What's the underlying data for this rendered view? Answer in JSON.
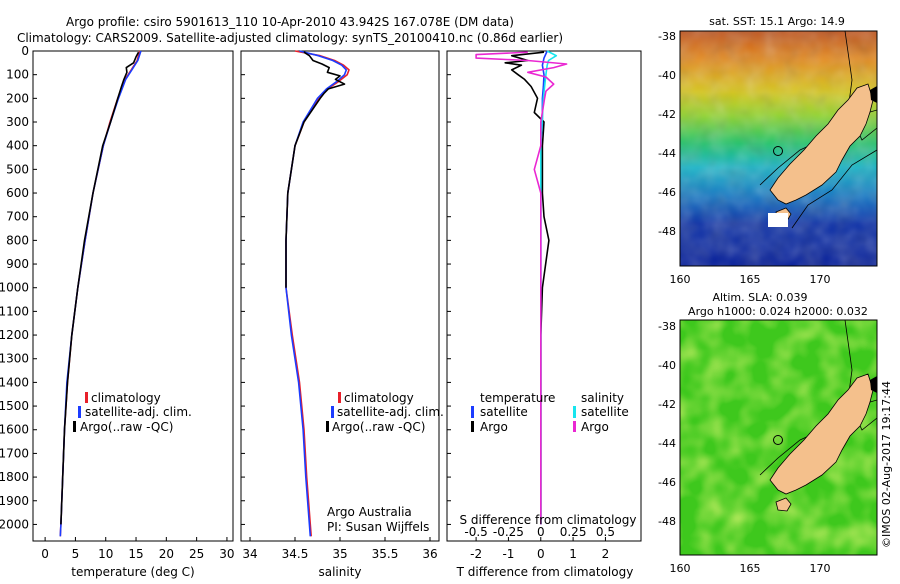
{
  "header": {
    "line1": "Argo profile: csiro 5901613_110 10-Apr-2010 43.942S 167.078E (DM data)",
    "line2": "Climatology: CARS2009. Satellite-adjusted climatology: synTS_20100410.nc (0.86d earlier)"
  },
  "colors": {
    "climatology": "#e8202a",
    "satellite": "#1c3cff",
    "argo": "#000000",
    "sat_salinity": "#17e5ee",
    "argo_salinity": "#ea27d2",
    "land": "#f4c08c"
  },
  "chart_data": [
    {
      "type": "line",
      "name": "temperature-profile",
      "xlabel": "temperature (deg C)",
      "ylabel": "",
      "xlim": [
        -2,
        31
      ],
      "ylim": [
        2070,
        0
      ],
      "x_ticks": [
        "0",
        "5",
        "10",
        "15",
        "20",
        "25",
        "30"
      ],
      "y_ticks": [
        "0",
        "100",
        "200",
        "300",
        "400",
        "500",
        "600",
        "700",
        "800",
        "900",
        "1000",
        "1100",
        "1200",
        "1300",
        "1400",
        "1500",
        "1600",
        "1700",
        "1800",
        "1900",
        "2000"
      ],
      "legend": [
        "climatology",
        "satellite-adj. clim.",
        "Argo(..raw -QC)"
      ],
      "legend_position": "lower-right",
      "series": [
        {
          "name": "climatology",
          "color": "#e8202a",
          "depth": [
            0,
            40,
            80,
            120,
            200,
            300,
            400,
            600,
            800,
            1000,
            1200,
            1400,
            1600,
            1800,
            2000,
            2050
          ],
          "values": [
            15.6,
            15.2,
            14.2,
            13.2,
            12.0,
            10.7,
            9.6,
            7.9,
            6.6,
            5.4,
            4.4,
            3.7,
            3.2,
            2.9,
            2.6,
            2.5
          ]
        },
        {
          "name": "satellite-adj. clim.",
          "color": "#1c3cff",
          "depth": [
            0,
            40,
            80,
            120,
            200,
            300,
            400,
            600,
            800,
            1000,
            1200,
            1400,
            1600,
            1800,
            2000,
            2050
          ],
          "values": [
            15.8,
            15.3,
            14.3,
            13.3,
            12.1,
            10.8,
            9.6,
            7.9,
            6.6,
            5.4,
            4.4,
            3.6,
            3.2,
            2.9,
            2.6,
            2.5
          ]
        },
        {
          "name": "Argo(..raw -QC)",
          "color": "#000000",
          "depth": [
            5,
            25,
            50,
            70,
            90,
            120,
            150,
            200,
            300,
            400,
            600,
            800,
            1000,
            1200,
            1400,
            1600,
            1800,
            2000
          ],
          "values": [
            15.4,
            15.0,
            14.6,
            13.4,
            13.5,
            13.0,
            12.6,
            12.0,
            10.8,
            9.5,
            7.9,
            6.5,
            5.4,
            4.4,
            3.7,
            3.2,
            2.9,
            2.6
          ]
        }
      ]
    },
    {
      "type": "line",
      "name": "salinity-profile",
      "xlabel": "salinity",
      "xlim": [
        33.9,
        36.1
      ],
      "ylim": [
        2070,
        0
      ],
      "x_ticks": [
        "34",
        "34.5",
        "35",
        "35.5",
        "36"
      ],
      "legend": [
        "climatology",
        "satellite-adj. clim.",
        "Argo(..raw -QC)"
      ],
      "legend_position": "lower-right",
      "annotation": [
        "Argo Australia",
        "PI: Susan Wijffels"
      ],
      "series": [
        {
          "name": "climatology",
          "color": "#e8202a",
          "depth": [
            0,
            20,
            40,
            60,
            80,
            100,
            130,
            160,
            200,
            300,
            400,
            600,
            800,
            1000,
            1200,
            1400,
            1600,
            1800,
            2000,
            2050
          ],
          "values": [
            34.5,
            34.78,
            34.94,
            35.04,
            35.1,
            35.08,
            34.98,
            34.86,
            34.76,
            34.6,
            34.5,
            34.42,
            34.4,
            34.4,
            34.47,
            34.55,
            34.6,
            34.63,
            34.67,
            34.68
          ]
        },
        {
          "name": "satellite-adj. clim.",
          "color": "#1c3cff",
          "depth": [
            0,
            20,
            40,
            60,
            80,
            100,
            130,
            160,
            200,
            300,
            400,
            600,
            800,
            1000,
            1200,
            1400,
            1600,
            1800,
            2000,
            2050
          ],
          "values": [
            34.55,
            34.76,
            34.92,
            35.02,
            35.07,
            35.05,
            34.96,
            34.85,
            34.75,
            34.59,
            34.5,
            34.42,
            34.4,
            34.4,
            34.46,
            34.54,
            34.59,
            34.62,
            34.66,
            34.67
          ]
        },
        {
          "name": "Argo(..raw -QC)",
          "color": "#000000",
          "depth": [
            5,
            20,
            40,
            55,
            70,
            90,
            105,
            120,
            140,
            160,
            180,
            200,
            300,
            400,
            600,
            800,
            1000
          ],
          "values": [
            34.6,
            34.66,
            34.7,
            34.8,
            34.88,
            34.86,
            35.0,
            34.95,
            35.05,
            34.87,
            34.82,
            34.78,
            34.6,
            34.5,
            34.42,
            34.4,
            34.4
          ]
        }
      ]
    },
    {
      "type": "line",
      "name": "difference-profile",
      "xlabel": "T difference from climatology",
      "xlabel_top": "S difference from climatology",
      "xlim": [
        -2.9,
        3.1
      ],
      "ylim": [
        2070,
        0
      ],
      "x_ticks": [
        "-2",
        "-1",
        "0",
        "1",
        "2"
      ],
      "top_ticks": [
        "-0.5",
        "-0.25",
        "0",
        "0.25",
        "0.5"
      ],
      "legend": {
        "temperature": [
          "temperature",
          "satellite",
          "Argo"
        ],
        "salinity": [
          "salinity",
          "satellite",
          "Argo"
        ]
      },
      "legend_position": "lower-right",
      "series": [
        {
          "name": "T satellite",
          "color": "#1c3cff",
          "depth": [
            0,
            30,
            60,
            100,
            150,
            200,
            300,
            400,
            600,
            1000,
            2000
          ],
          "values": [
            0.2,
            0.1,
            0.05,
            0.1,
            0.08,
            0.05,
            0.05,
            0.0,
            0.0,
            0.0,
            0.0
          ]
        },
        {
          "name": "T Argo",
          "color": "#000000",
          "depth": [
            5,
            20,
            40,
            50,
            60,
            80,
            100,
            120,
            150,
            200,
            260,
            300,
            400,
            600,
            700,
            800,
            1000,
            1200,
            1600,
            2000
          ],
          "values": [
            0.1,
            -0.9,
            -0.4,
            -1.1,
            -0.6,
            -0.9,
            -0.7,
            -0.5,
            -0.3,
            -0.1,
            -0.2,
            0.1,
            0.05,
            0.05,
            0.1,
            0.25,
            0.05,
            0.0,
            0.0,
            0.0
          ]
        },
        {
          "name": "S satellite",
          "color": "#17e5ee",
          "depth": [
            0,
            20,
            40,
            60,
            100,
            150,
            200,
            300,
            400,
            600,
            1000,
            2000
          ],
          "values": [
            0.05,
            0.12,
            0.06,
            0.05,
            0.04,
            0.03,
            0.02,
            0.01,
            0.0,
            0.0,
            0.0,
            0.0
          ]
        },
        {
          "name": "S Argo",
          "color": "#ea27d2",
          "depth": [
            5,
            15,
            30,
            40,
            55,
            70,
            90,
            110,
            140,
            170,
            200,
            300,
            400,
            500,
            600,
            800,
            1000,
            2000
          ],
          "values": [
            -0.1,
            -0.5,
            -0.5,
            -0.1,
            0.2,
            0.1,
            -0.1,
            0.04,
            0.1,
            0.04,
            0.03,
            0.0,
            0.0,
            -0.05,
            0.0,
            0.0,
            0.0,
            0.0
          ]
        }
      ]
    },
    {
      "type": "heatmap",
      "name": "sst-map",
      "title": "sat. SST: 15.1 Argo: 14.9",
      "x_ticks": [
        "160",
        "165",
        "170"
      ],
      "y_ticks": [
        "-38",
        "-40",
        "-42",
        "-44",
        "-46",
        "-48"
      ],
      "xlim": [
        160,
        174
      ],
      "ylim": [
        -49.8,
        -37.8
      ],
      "argo_position": [
        167.078,
        -43.942
      ]
    },
    {
      "type": "heatmap",
      "name": "sla-map",
      "title": "Altim. SLA: 0.039",
      "subtitle": "Argo h1000: 0.024 h2000: 0.032",
      "x_ticks": [
        "160",
        "165",
        "170"
      ],
      "y_ticks": [
        "-38",
        "-40",
        "-42",
        "-44",
        "-46",
        "-48"
      ],
      "xlim": [
        160,
        174
      ],
      "ylim": [
        -49.8,
        -37.8
      ],
      "argo_position": [
        167.078,
        -43.942
      ]
    }
  ],
  "footer": {
    "credit": "©IMOS 02-Aug-2017 19:17:44"
  }
}
